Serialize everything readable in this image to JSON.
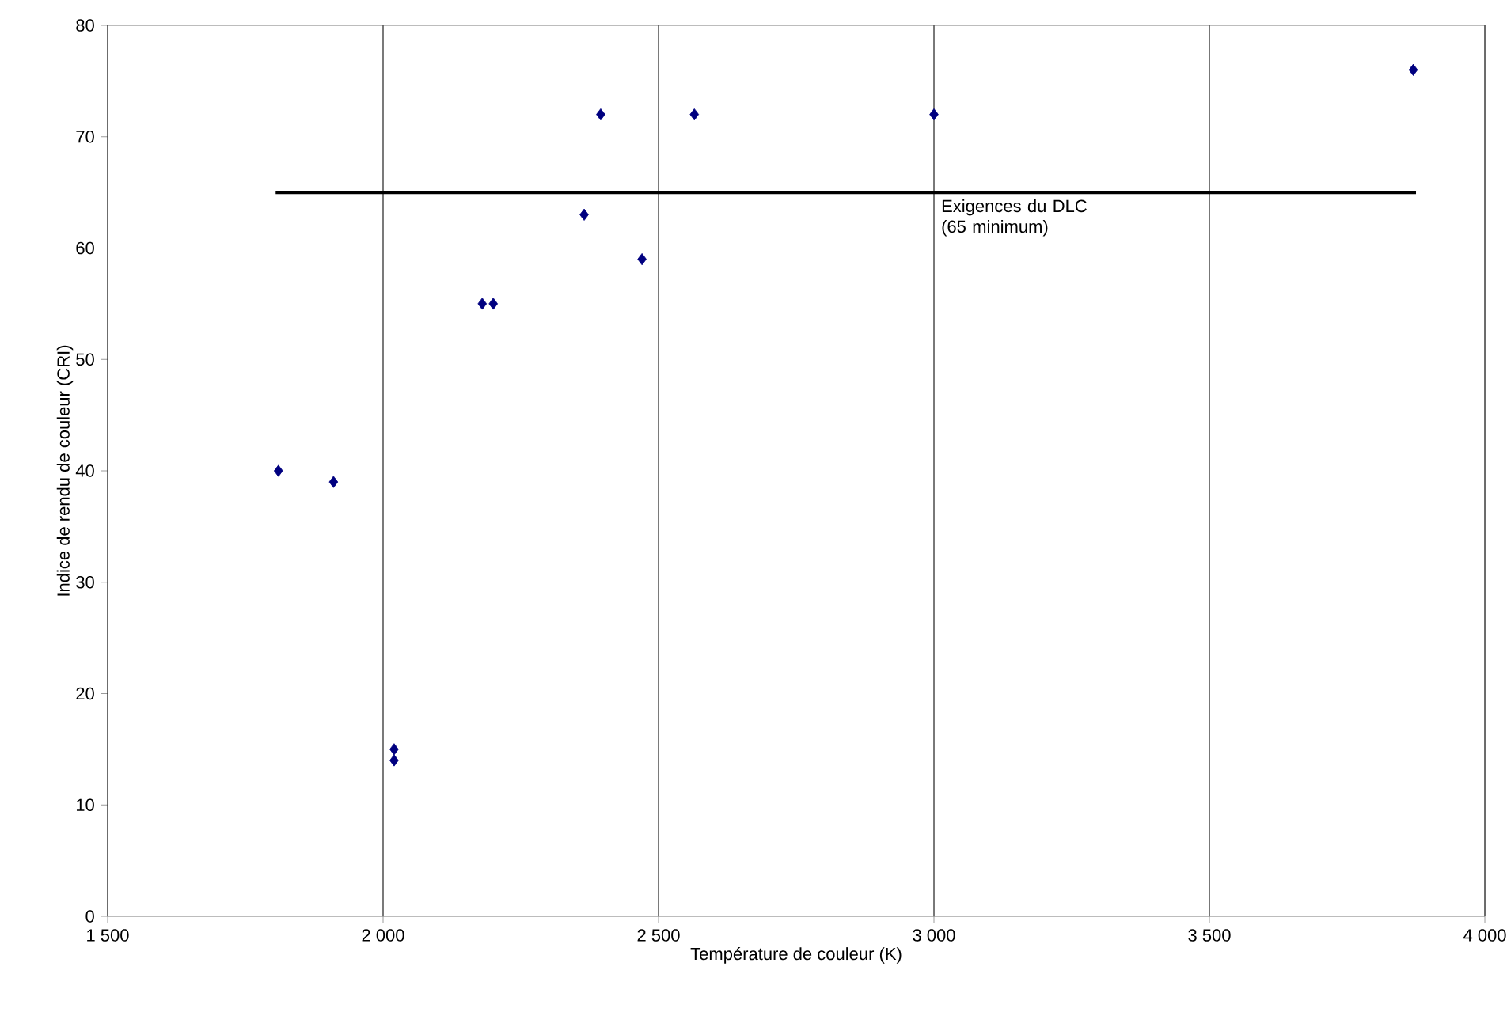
{
  "chart_data": {
    "type": "scatter",
    "xlabel": "Température de couleur (K)",
    "ylabel": "Indice de rendu de couleur (CRI)",
    "xlim": [
      1500,
      4000
    ],
    "ylim": [
      0,
      80
    ],
    "xticks": [
      {
        "value": 1500,
        "label": "1 500"
      },
      {
        "value": 2000,
        "label": "2 000"
      },
      {
        "value": 2500,
        "label": "2 500"
      },
      {
        "value": 3000,
        "label": "3 000"
      },
      {
        "value": 3500,
        "label": "3 500"
      },
      {
        "value": 4000,
        "label": "4 000"
      }
    ],
    "yticks": [
      0,
      10,
      20,
      30,
      40,
      50,
      60,
      70,
      80
    ],
    "grid": "x",
    "series": [
      {
        "color": "#000080",
        "marker": "diamond",
        "x": [
          1810,
          1910,
          2020,
          2020,
          2180,
          2200,
          2365,
          2395,
          2470,
          2565,
          3000,
          3870
        ],
        "values": [
          40,
          39,
          15,
          14,
          55,
          55,
          63,
          72,
          59,
          72,
          72,
          76
        ]
      },
      {
        "type": "line",
        "color": "#000000",
        "marker": "none",
        "line_style": "solid",
        "x": [
          1805,
          3875
        ],
        "values": [
          65,
          65
        ]
      }
    ],
    "annotations": [
      "Exigences du DLC (65 minimum)"
    ]
  }
}
